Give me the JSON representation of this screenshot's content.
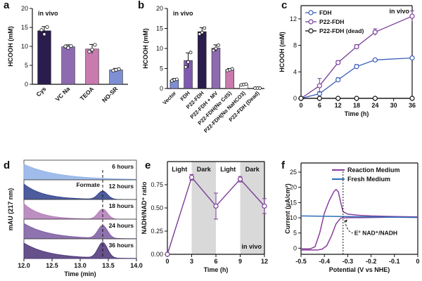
{
  "chart_data": [
    {
      "panel": "a",
      "type": "bar",
      "annotation": "in vivo",
      "ylabel": "HCOOH (mM)",
      "ylim": [
        0,
        20
      ],
      "yticks": [
        0,
        5,
        10,
        15,
        20
      ],
      "categories": [
        "Cys",
        "VC Na",
        "TEOA",
        "NO-SR"
      ],
      "values": [
        14.1,
        9.9,
        9.3,
        3.8
      ],
      "errors": [
        1.1,
        0.5,
        1.2,
        0.4
      ],
      "points": [
        [
          14.3,
          13.2,
          15.1
        ],
        [
          10.0,
          9.6,
          10.1
        ],
        [
          8.6,
          9.1,
          10.4
        ],
        [
          3.6,
          3.8,
          4.0
        ]
      ],
      "colors": [
        "#2a1d4e",
        "#8e6bb1",
        "#c97aae",
        "#7f8fd4"
      ]
    },
    {
      "panel": "b",
      "type": "bar",
      "annotation": "in vivo",
      "ylabel": "HCOOH (mM)",
      "ylim": [
        0,
        20
      ],
      "yticks": [
        0,
        5,
        10,
        15,
        20
      ],
      "categories": [
        "Vector",
        "FDH",
        "P22-FDH",
        "P22-FDH + MV",
        "P22-FDH(No CdS)",
        "P22-FDH(No NaHCO3)",
        "P22-FDH (Dead)"
      ],
      "values": [
        2.1,
        7.0,
        14.2,
        10.1,
        4.7,
        1.0,
        0.1
      ],
      "errors": [
        0.4,
        1.9,
        1.0,
        0.8,
        0.3,
        0.2,
        0.05
      ],
      "points": [
        [
          1.9,
          2.2,
          2.3
        ],
        [
          5.4,
          6.6,
          9.0
        ],
        [
          13.6,
          14.0,
          15.1
        ],
        [
          9.5,
          10.0,
          10.8
        ],
        [
          4.5,
          4.7,
          4.9
        ],
        [
          0.9,
          1.0,
          1.1
        ],
        [
          0.1,
          0.1,
          0.1
        ]
      ],
      "colors": [
        "#7f8fd4",
        "#7f5ab0",
        "#2a1d4e",
        "#8e6bb1",
        "#c97aae",
        "#ffffff",
        "#ffffff"
      ]
    },
    {
      "panel": "c",
      "type": "line",
      "annotation": "in vivo",
      "xlabel": "Time (h)",
      "ylabel": "HCOOH (mM)",
      "xlim": [
        0,
        36
      ],
      "ylim": [
        0,
        14
      ],
      "xticks": [
        0,
        6,
        12,
        18,
        24,
        30,
        36
      ],
      "yticks": [
        0,
        4,
        8,
        12
      ],
      "series": [
        {
          "name": "FDH",
          "color": "#3a5fb8",
          "x": [
            0,
            6,
            12,
            18,
            24,
            36
          ],
          "y": [
            0,
            0.7,
            2.8,
            4.8,
            5.8,
            6.1
          ],
          "err": [
            0,
            0.3,
            0.3,
            0.3,
            0.2,
            0.2
          ]
        },
        {
          "name": "P22-FDH",
          "color": "#7a3e98",
          "x": [
            0,
            6,
            12,
            18,
            24,
            36
          ],
          "y": [
            0,
            1.9,
            5.4,
            7.8,
            10.0,
            12.4
          ],
          "err": [
            0,
            1.1,
            0.3,
            0.3,
            0.5,
            0.8
          ]
        },
        {
          "name": "P22-FDH (dead)",
          "color": "#111111",
          "x": [
            0,
            6,
            12,
            18,
            24,
            36
          ],
          "y": [
            0,
            0,
            0,
            0,
            0,
            0
          ],
          "err": [
            0,
            0,
            0,
            0,
            0,
            0
          ]
        }
      ]
    },
    {
      "panel": "d",
      "type": "area",
      "xlabel": "Time (min)",
      "ylabel": "mAU (217 nm)",
      "xlim": [
        12.0,
        14.0
      ],
      "xticks": [
        12.0,
        12.5,
        13.0,
        13.5,
        14.0
      ],
      "peak_label": "Formate",
      "peak_time": 13.4,
      "traces": [
        {
          "label": "6 hours",
          "color": "#8fb0e6"
        },
        {
          "label": "12 hours",
          "color": "#2f3f8c"
        },
        {
          "label": "18 hours",
          "color": "#b07bb6"
        },
        {
          "label": "24 hours",
          "color": "#7a5aa0"
        },
        {
          "label": "36 hours",
          "color": "#4b3277"
        }
      ]
    },
    {
      "panel": "e",
      "type": "line",
      "annotation": "in vivo",
      "xlabel": "Time (h)",
      "ylabel": "NADH/NAD⁺ ratio",
      "xlim": [
        0,
        12
      ],
      "ylim": [
        0,
        1.0
      ],
      "xticks": [
        0,
        3,
        6,
        9,
        12
      ],
      "yticks": [
        0.0,
        0.25,
        0.5,
        0.75
      ],
      "phases": [
        {
          "label": "Light",
          "from": 0,
          "to": 3
        },
        {
          "label": "Dark",
          "from": 3,
          "to": 6
        },
        {
          "label": "Light",
          "from": 6,
          "to": 9
        },
        {
          "label": "Dark",
          "from": 9,
          "to": 12
        }
      ],
      "x": [
        0,
        3,
        6,
        9,
        12
      ],
      "y": [
        0,
        0.83,
        0.52,
        0.81,
        0.52
      ],
      "err": [
        0,
        0.03,
        0.14,
        0.03,
        0.08
      ],
      "color": "#7a3e98"
    },
    {
      "panel": "f",
      "type": "line",
      "xlabel": "Potential (V vs NHE)",
      "ylabel": "Current (μA/cm²)",
      "xlim": [
        -0.5,
        0.0
      ],
      "ylim": [
        -2,
        28
      ],
      "xticks": [
        -0.5,
        -0.4,
        -0.3,
        -0.2,
        -0.1,
        0.0
      ],
      "yticks": [
        0,
        5,
        10,
        15,
        20,
        25
      ],
      "annotation": "E° NAD⁺/NADH",
      "marker_x": -0.32,
      "series": [
        {
          "name": "Reaction Medium",
          "color": "#8a3e9a",
          "x": [
            -0.5,
            -0.46,
            -0.44,
            -0.42,
            -0.4,
            -0.38,
            -0.36,
            -0.35,
            -0.34,
            -0.33,
            -0.32,
            -0.3,
            -0.25,
            -0.2,
            -0.1,
            0.0,
            -0.1,
            -0.2,
            -0.3,
            -0.33,
            -0.35,
            -0.37,
            -0.39,
            -0.41,
            -0.43,
            -0.45,
            -0.5
          ],
          "y": [
            -0.2,
            -0.2,
            0.5,
            5.0,
            11.5,
            15.5,
            18.5,
            19.3,
            18.5,
            15.0,
            12.0,
            11.2,
            10.8,
            10.6,
            10.4,
            10.3,
            10.2,
            10.1,
            10.0,
            9.9,
            8.0,
            4.0,
            0.8,
            -0.3,
            -0.6,
            -0.6,
            -0.6
          ]
        },
        {
          "name": "Fresh Medium",
          "color": "#2a6fb8",
          "x": [
            -0.5,
            0.0
          ],
          "y": [
            10.6,
            10.1
          ]
        }
      ]
    }
  ]
}
